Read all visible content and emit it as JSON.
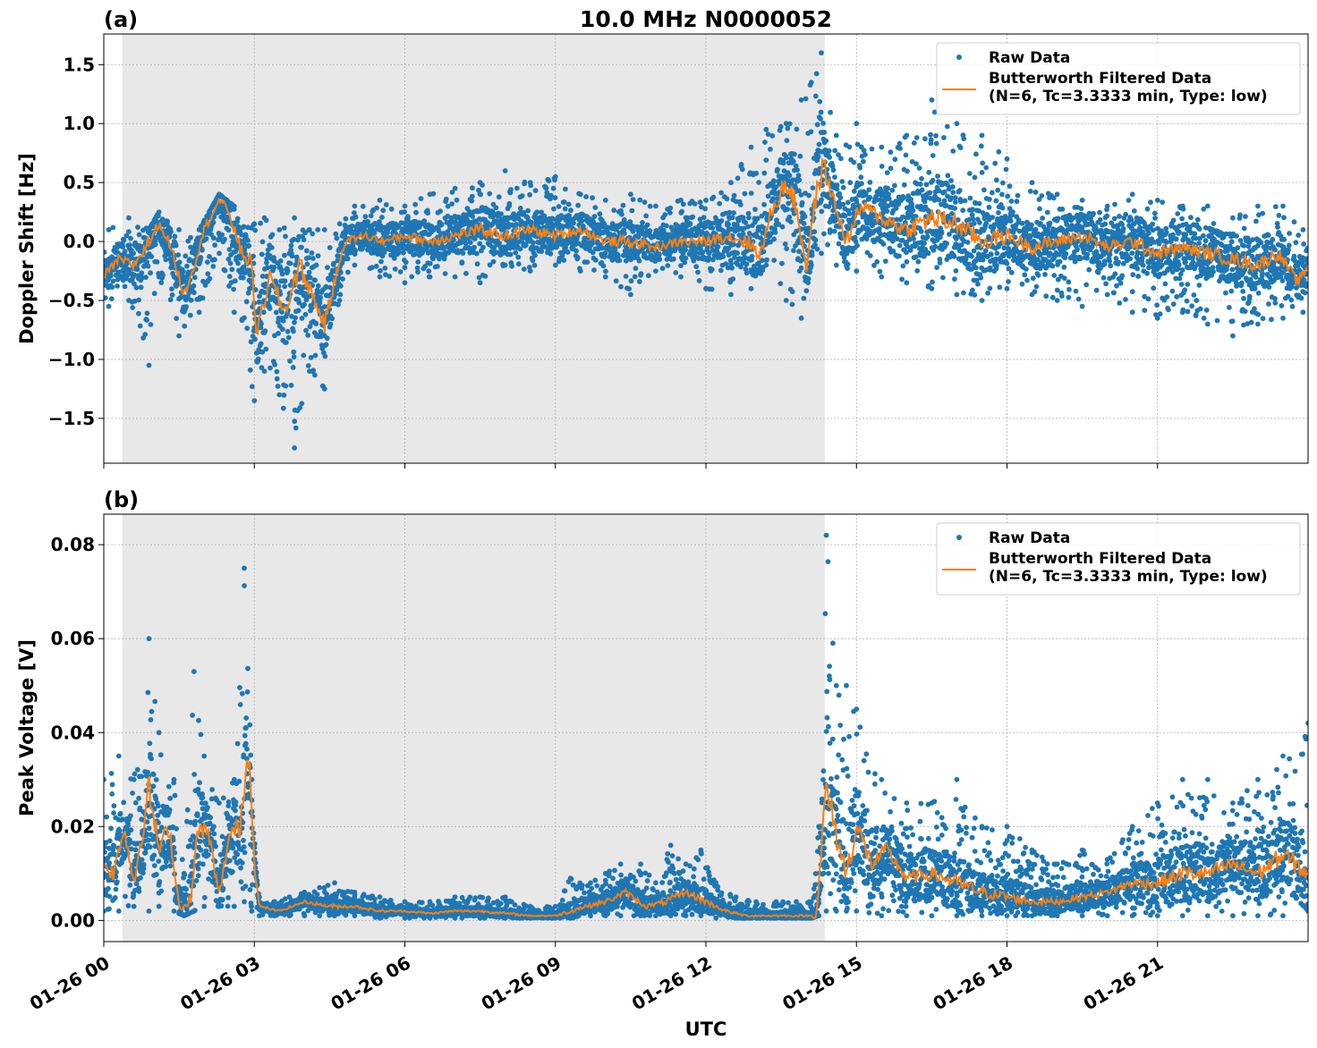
{
  "chart_data": [
    {
      "type": "scatter",
      "panel_label": "(a)",
      "title": "10.0 MHz N0000052",
      "xlabel": "",
      "ylabel": "Doppler Shift [Hz]",
      "x_unit": "hours UTC on 01-26",
      "xlim": [
        0,
        24
      ],
      "ylim": [
        -1.88,
        1.76
      ],
      "yticks": [
        -1.5,
        -1.0,
        -0.5,
        0.0,
        0.5,
        1.0,
        1.5
      ],
      "ytick_labels": [
        "−1.5",
        "−1.0",
        "−0.5",
        "0.0",
        "0.5",
        "1.0",
        "1.5"
      ],
      "shaded_interval": [
        0.37,
        14.37
      ],
      "grid": true,
      "legend_position": "top-right",
      "series": [
        {
          "name": "Raw Data",
          "kind": "points",
          "color": "#1f77b4",
          "x": [
            0.1,
            0.5,
            0.9,
            1.1,
            1.5,
            1.9,
            2.3,
            2.6,
            3.0,
            3.2,
            3.5,
            3.8,
            4.1,
            4.4,
            4.7,
            5.0,
            5.5,
            6.0,
            6.5,
            7.0,
            7.5,
            8.0,
            8.5,
            9.0,
            9.5,
            10.0,
            10.5,
            11.0,
            11.5,
            12.0,
            12.5,
            12.9,
            13.2,
            13.6,
            13.9,
            14.1,
            14.3,
            14.6,
            15.0,
            15.5,
            16.0,
            16.5,
            17.0,
            17.5,
            18.0,
            18.5,
            19.0,
            19.5,
            20.0,
            20.5,
            21.0,
            21.5,
            22.0,
            22.5,
            23.0,
            23.5,
            23.9
          ],
          "upper": [
            0.1,
            0.2,
            0.1,
            0.25,
            0.1,
            0.1,
            0.4,
            0.3,
            0.15,
            0.2,
            0.1,
            0.2,
            0.1,
            0.1,
            0.15,
            0.3,
            0.35,
            0.3,
            0.4,
            0.45,
            0.5,
            0.6,
            0.5,
            0.55,
            0.4,
            0.35,
            0.4,
            0.3,
            0.35,
            0.35,
            0.5,
            0.8,
            0.95,
            1.0,
            1.2,
            1.35,
            1.6,
            0.9,
            1.0,
            0.8,
            0.9,
            1.2,
            1.0,
            0.9,
            0.7,
            0.5,
            0.4,
            0.35,
            0.3,
            0.4,
            0.35,
            0.3,
            0.3,
            0.2,
            0.3,
            0.3,
            0.1
          ],
          "lower": [
            -0.55,
            -0.5,
            -1.05,
            -0.3,
            -0.8,
            -0.6,
            -0.1,
            -0.6,
            -1.35,
            -1.1,
            -1.3,
            -1.75,
            -1.1,
            -1.25,
            -0.5,
            -0.2,
            -0.3,
            -0.35,
            -0.3,
            -0.3,
            -0.35,
            -0.2,
            -0.25,
            -0.2,
            -0.25,
            -0.3,
            -0.45,
            -0.25,
            -0.3,
            -0.4,
            -0.45,
            -0.4,
            -0.2,
            -0.5,
            -0.65,
            -0.2,
            -0.1,
            -0.2,
            -0.25,
            -0.3,
            -0.35,
            -0.4,
            -0.45,
            -0.5,
            -0.4,
            -0.45,
            -0.5,
            -0.55,
            -0.45,
            -0.6,
            -0.65,
            -0.6,
            -0.7,
            -0.8,
            -0.7,
            -0.65,
            -0.6
          ]
        },
        {
          "name": "Butterworth Filtered Data\n(N=6, Tc=3.3333 min, Type: low)",
          "kind": "line",
          "color": "#ff7f0e",
          "x": [
            0.0,
            0.3,
            0.6,
            0.9,
            1.1,
            1.3,
            1.6,
            1.8,
            2.0,
            2.3,
            2.5,
            2.7,
            2.95,
            3.05,
            3.3,
            3.6,
            3.9,
            4.2,
            4.4,
            4.6,
            4.8,
            5.2,
            5.6,
            6.0,
            6.5,
            7.0,
            7.5,
            8.0,
            8.5,
            9.0,
            9.5,
            10.0,
            10.5,
            11.0,
            11.5,
            12.0,
            12.4,
            12.8,
            13.1,
            13.3,
            13.6,
            13.8,
            14.0,
            14.2,
            14.35,
            14.5,
            14.8,
            15.1,
            15.5,
            16.0,
            16.5,
            17.0,
            17.5,
            18.0,
            18.5,
            19.0,
            19.5,
            20.0,
            20.5,
            21.0,
            21.5,
            22.0,
            22.5,
            23.0,
            23.4,
            23.8,
            24.0
          ],
          "y": [
            -0.3,
            -0.15,
            -0.2,
            0.0,
            0.15,
            0.0,
            -0.45,
            -0.2,
            0.1,
            0.35,
            0.25,
            -0.05,
            -0.2,
            -0.8,
            -0.3,
            -0.6,
            -0.2,
            -0.5,
            -0.7,
            -0.35,
            0.0,
            0.05,
            0.0,
            0.05,
            0.0,
            0.05,
            0.1,
            0.05,
            0.1,
            0.05,
            0.1,
            0.0,
            0.0,
            -0.05,
            0.0,
            0.0,
            0.05,
            0.0,
            -0.1,
            0.25,
            0.5,
            0.3,
            -0.2,
            0.4,
            0.65,
            0.4,
            0.0,
            0.3,
            0.2,
            0.1,
            0.2,
            0.15,
            0.0,
            0.05,
            -0.05,
            0.0,
            0.05,
            -0.05,
            0.0,
            -0.1,
            -0.05,
            -0.1,
            -0.15,
            -0.2,
            -0.1,
            -0.35,
            -0.2
          ]
        }
      ]
    },
    {
      "type": "scatter",
      "panel_label": "(b)",
      "title": "",
      "xlabel": "UTC",
      "ylabel": "Peak Voltage [V]",
      "x_unit": "hours UTC on 01-26",
      "xlim": [
        0,
        24
      ],
      "ylim": [
        -0.0045,
        0.0865
      ],
      "yticks": [
        0.0,
        0.02,
        0.04,
        0.06,
        0.08
      ],
      "ytick_labels": [
        "0.00",
        "0.02",
        "0.04",
        "0.06",
        "0.08"
      ],
      "xticks": [
        0,
        3,
        6,
        9,
        12,
        15,
        18,
        21
      ],
      "xtick_labels": [
        "01-26 00",
        "01-26 03",
        "01-26 06",
        "01-26 09",
        "01-26 12",
        "01-26 15",
        "01-26 18",
        "01-26 21"
      ],
      "shaded_interval": [
        0.37,
        14.37
      ],
      "grid": true,
      "legend_position": "top-right",
      "series": [
        {
          "name": "Raw Data",
          "kind": "points",
          "color": "#1f77b4",
          "x": [
            0.0,
            0.3,
            0.6,
            0.9,
            1.1,
            1.4,
            1.6,
            1.8,
            2.0,
            2.3,
            2.6,
            2.8,
            2.95,
            3.1,
            3.4,
            3.7,
            4.0,
            4.3,
            4.6,
            5.0,
            5.5,
            6.0,
            6.5,
            7.0,
            7.5,
            8.0,
            8.5,
            9.0,
            9.3,
            9.7,
            10.0,
            10.3,
            10.7,
            11.0,
            11.3,
            11.6,
            11.9,
            12.2,
            12.6,
            13.0,
            13.4,
            13.8,
            14.1,
            14.25,
            14.4,
            14.6,
            14.8,
            15.0,
            15.5,
            16.0,
            16.5,
            17.0,
            17.5,
            18.0,
            18.5,
            19.0,
            19.5,
            20.0,
            20.5,
            21.0,
            21.5,
            22.0,
            22.5,
            23.0,
            23.5,
            24.0
          ],
          "upper": [
            0.03,
            0.035,
            0.03,
            0.06,
            0.04,
            0.03,
            0.01,
            0.053,
            0.035,
            0.025,
            0.03,
            0.075,
            0.03,
            0.005,
            0.004,
            0.005,
            0.006,
            0.007,
            0.008,
            0.006,
            0.005,
            0.004,
            0.004,
            0.005,
            0.005,
            0.005,
            0.003,
            0.003,
            0.009,
            0.008,
            0.01,
            0.012,
            0.012,
            0.008,
            0.016,
            0.012,
            0.015,
            0.008,
            0.005,
            0.004,
            0.004,
            0.004,
            0.004,
            0.02,
            0.082,
            0.05,
            0.05,
            0.045,
            0.03,
            0.025,
            0.025,
            0.03,
            0.02,
            0.02,
            0.015,
            0.012,
            0.015,
            0.013,
            0.02,
            0.025,
            0.03,
            0.03,
            0.025,
            0.03,
            0.035,
            0.042
          ],
          "lower": [
            0.002,
            0.002,
            0.003,
            0.002,
            0.003,
            0.002,
            0.001,
            0.002,
            0.003,
            0.003,
            0.003,
            0.004,
            0.002,
            0.001,
            0.001,
            0.001,
            0.001,
            0.001,
            0.001,
            0.001,
            0.0005,
            0.0005,
            0.0005,
            0.0005,
            0.0005,
            0.0005,
            0.0005,
            0.0005,
            0.0005,
            0.001,
            0.001,
            0.001,
            0.001,
            0.001,
            0.001,
            0.001,
            0.001,
            0.0005,
            0.0005,
            0.0005,
            0.0005,
            0.0005,
            0.0005,
            0.001,
            0.002,
            0.002,
            0.002,
            0.002,
            0.001,
            0.001,
            0.001,
            0.001,
            0.001,
            0.001,
            0.001,
            0.001,
            0.001,
            0.001,
            0.001,
            0.001,
            0.001,
            0.001,
            0.001,
            0.001,
            0.001,
            0.002
          ]
        },
        {
          "name": "Butterworth Filtered Data\n(N=6, Tc=3.3333 min, Type: low)",
          "kind": "line",
          "color": "#ff7f0e",
          "x": [
            0.0,
            0.2,
            0.4,
            0.6,
            0.9,
            1.1,
            1.3,
            1.5,
            1.7,
            1.9,
            2.1,
            2.3,
            2.5,
            2.7,
            2.9,
            3.0,
            3.1,
            3.5,
            4.0,
            4.5,
            5.0,
            5.5,
            6.0,
            6.5,
            7.0,
            7.5,
            8.0,
            8.5,
            9.0,
            9.3,
            9.6,
            10.0,
            10.4,
            10.8,
            11.2,
            11.6,
            12.0,
            12.4,
            12.8,
            13.2,
            13.6,
            14.0,
            14.2,
            14.3,
            14.4,
            14.6,
            14.8,
            15.0,
            15.3,
            15.6,
            16.0,
            16.5,
            17.0,
            17.5,
            18.0,
            18.5,
            19.0,
            19.5,
            20.0,
            20.5,
            21.0,
            21.5,
            22.0,
            22.5,
            23.0,
            23.5,
            24.0
          ],
          "y": [
            0.012,
            0.01,
            0.02,
            0.008,
            0.028,
            0.015,
            0.02,
            0.003,
            0.003,
            0.02,
            0.018,
            0.005,
            0.018,
            0.02,
            0.037,
            0.012,
            0.003,
            0.002,
            0.004,
            0.003,
            0.003,
            0.002,
            0.002,
            0.0015,
            0.002,
            0.002,
            0.0015,
            0.001,
            0.001,
            0.002,
            0.003,
            0.004,
            0.006,
            0.003,
            0.004,
            0.006,
            0.004,
            0.002,
            0.001,
            0.001,
            0.001,
            0.001,
            0.001,
            0.015,
            0.028,
            0.018,
            0.01,
            0.02,
            0.012,
            0.015,
            0.009,
            0.01,
            0.008,
            0.006,
            0.005,
            0.004,
            0.004,
            0.005,
            0.006,
            0.008,
            0.008,
            0.01,
            0.01,
            0.012,
            0.01,
            0.014,
            0.01
          ]
        }
      ]
    }
  ]
}
